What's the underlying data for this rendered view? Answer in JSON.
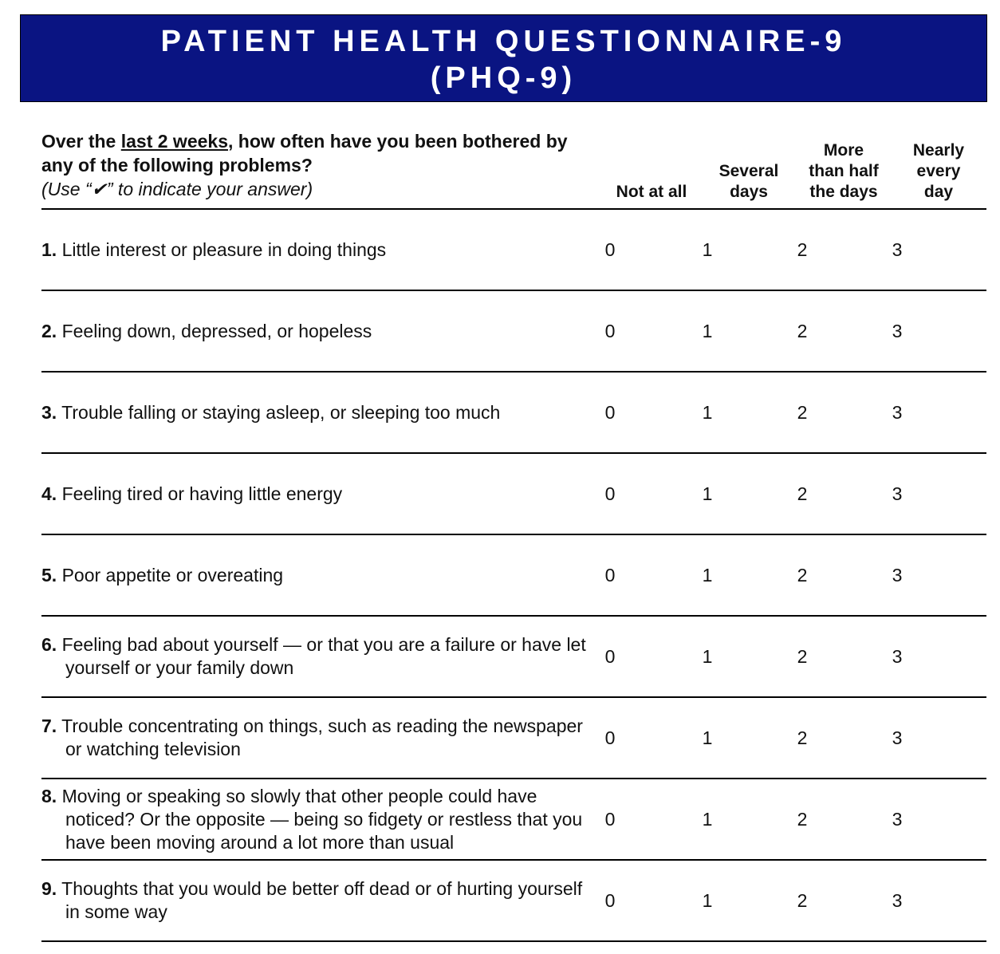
{
  "header": {
    "title_line1": "PATIENT HEALTH QUESTIONNAIRE-9",
    "title_line2": "(PHQ-9)"
  },
  "question": {
    "prefix": "Over the ",
    "period": "last 2 weeks",
    "suffix": ", how often have you been bothered by any of the following problems?",
    "instruction": "(Use “✔” to indicate your answer)"
  },
  "columns": [
    {
      "line1": "",
      "line2": "",
      "line3": "Not at all"
    },
    {
      "line1": "",
      "line2": "Several",
      "line3": "days"
    },
    {
      "line1": "More",
      "line2": "than half",
      "line3": "the days"
    },
    {
      "line1": "Nearly",
      "line2": "every",
      "line3": "day"
    }
  ],
  "items": [
    {
      "number": "1.",
      "text": "Little interest or pleasure in doing things",
      "scores": [
        "0",
        "1",
        "2",
        "3"
      ]
    },
    {
      "number": "2.",
      "text": "Feeling down, depressed, or hopeless",
      "scores": [
        "0",
        "1",
        "2",
        "3"
      ]
    },
    {
      "number": "3.",
      "text": "Trouble falling or staying asleep, or sleeping too much",
      "scores": [
        "0",
        "1",
        "2",
        "3"
      ]
    },
    {
      "number": "4.",
      "text": "Feeling tired or having little energy",
      "scores": [
        "0",
        "1",
        "2",
        "3"
      ]
    },
    {
      "number": "5.",
      "text": "Poor appetite or overeating",
      "scores": [
        "0",
        "1",
        "2",
        "3"
      ]
    },
    {
      "number": "6.",
      "text": "Feeling bad about yourself — or that you are a failure or have let yourself or your family down",
      "scores": [
        "0",
        "1",
        "2",
        "3"
      ]
    },
    {
      "number": "7.",
      "text": "Trouble concentrating on things, such as reading the newspaper or watching television",
      "scores": [
        "0",
        "1",
        "2",
        "3"
      ]
    },
    {
      "number": "8.",
      "text": "Moving or speaking so slowly that other people could have noticed?  Or the opposite — being so fidgety or restless that you have been moving around a lot more than usual",
      "scores": [
        "0",
        "1",
        "2",
        "3"
      ]
    },
    {
      "number": "9.",
      "text": "Thoughts that you would be better off dead or of hurting yourself in some way",
      "scores": [
        "0",
        "1",
        "2",
        "3"
      ]
    }
  ],
  "colors": {
    "banner": "#0a1482",
    "banner_text": "#ffffff"
  }
}
